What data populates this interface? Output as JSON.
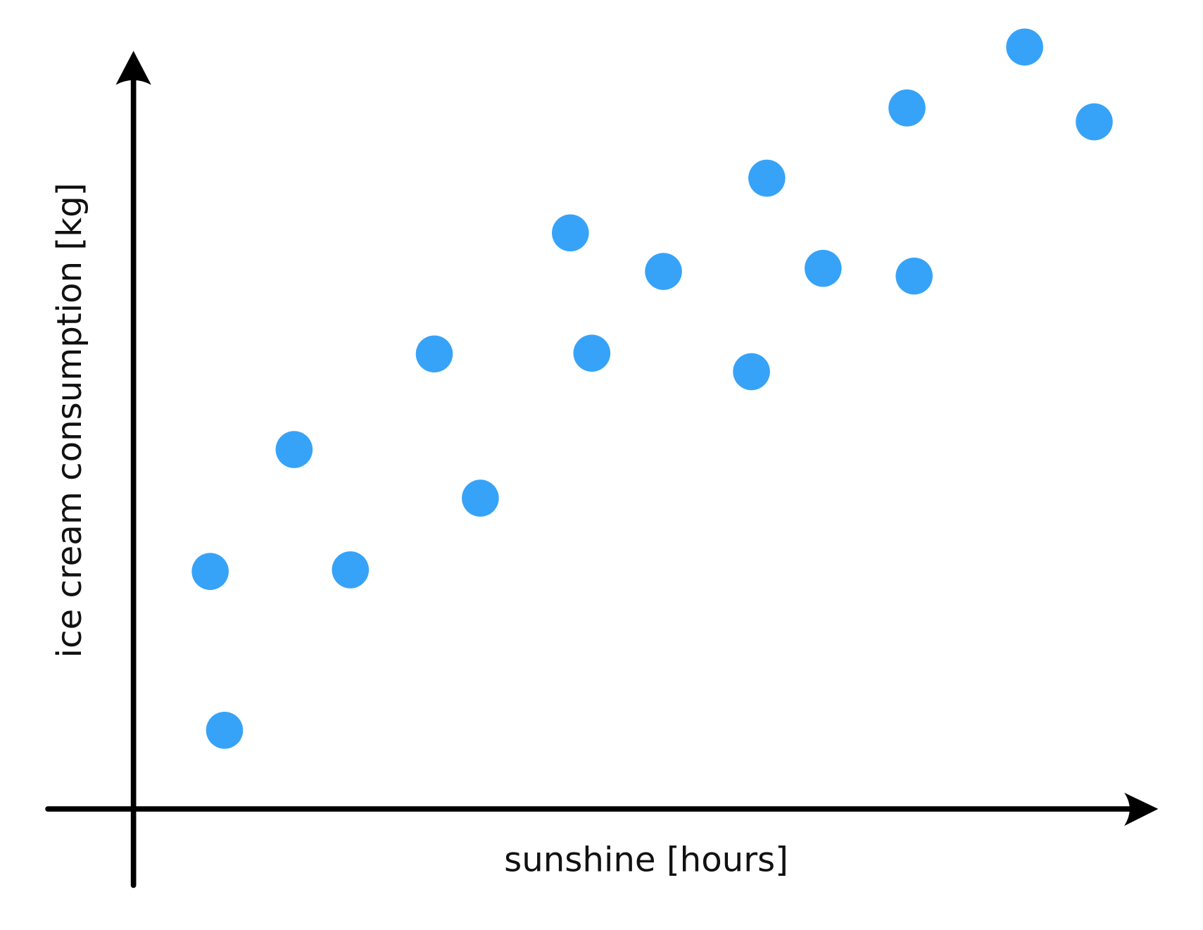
{
  "chart_data": {
    "type": "scatter",
    "x_label": "sunshine [hours]",
    "y_label": "ice cream consumption [kg]",
    "xlim": [
      0,
      100
    ],
    "ylim": [
      0,
      100
    ],
    "series": [
      {
        "color": "#36a3f8",
        "x": [
          7.5,
          8.9,
          15.7,
          21.2,
          29.4,
          33.9,
          42.7,
          44.8,
          51.8,
          60.4,
          61.9,
          67.4,
          75.6,
          76.3,
          87.1,
          93.9
        ],
        "values": [
          30.8,
          10.2,
          46.6,
          31.0,
          59.0,
          40.3,
          74.7,
          59.1,
          69.7,
          56.7,
          81.8,
          70.1,
          90.9,
          69.1,
          98.8,
          89.1
        ]
      }
    ]
  }
}
